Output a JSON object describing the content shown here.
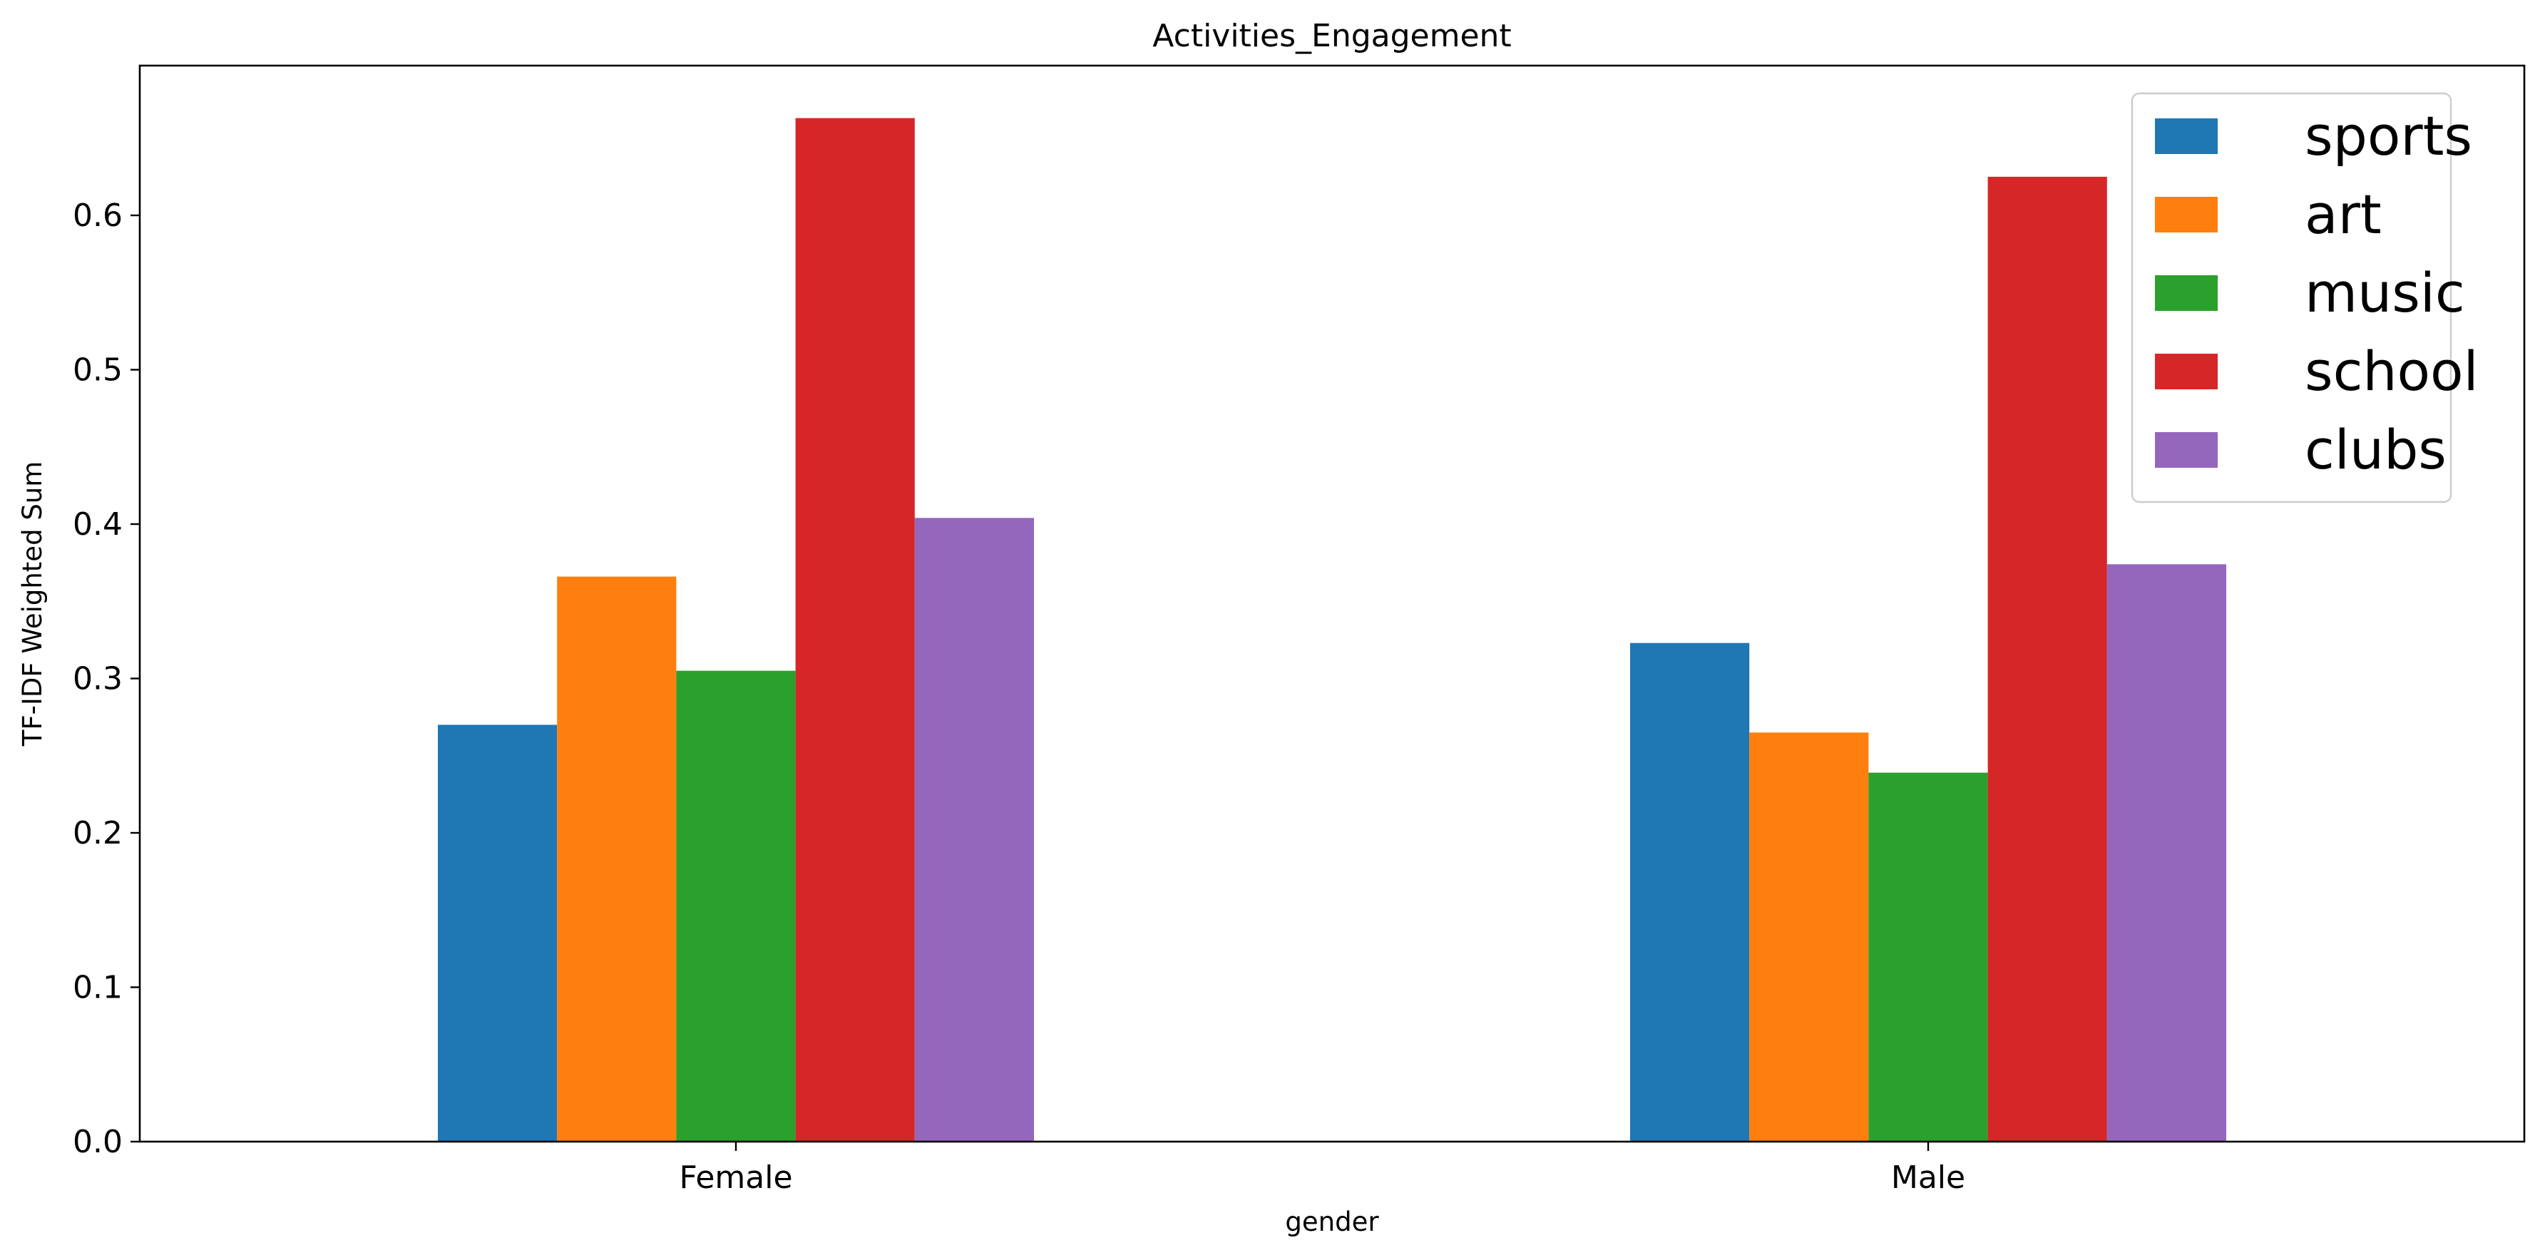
{
  "chart_data": {
    "type": "bar",
    "title": "Activities_Engagement",
    "xlabel": "gender",
    "ylabel": "TF-IDF Weighted Sum",
    "categories": [
      "Female",
      "Male"
    ],
    "series": [
      {
        "name": "sports",
        "color": "#1f77b4",
        "values": [
          0.27,
          0.323
        ]
      },
      {
        "name": "art",
        "color": "#ff7f0e",
        "values": [
          0.366,
          0.265
        ]
      },
      {
        "name": "music",
        "color": "#2ca02c",
        "values": [
          0.305,
          0.239
        ]
      },
      {
        "name": "school",
        "color": "#d62728",
        "values": [
          0.663,
          0.625
        ]
      },
      {
        "name": "clubs",
        "color": "#9467bd",
        "values": [
          0.404,
          0.374
        ]
      }
    ],
    "ylim": [
      0,
      0.697
    ],
    "yticks": [
      0.0,
      0.1,
      0.2,
      0.3,
      0.4,
      0.5,
      0.6
    ],
    "ytick_labels": [
      "0.0",
      "0.1",
      "0.2",
      "0.3",
      "0.4",
      "0.5",
      "0.6"
    ],
    "grid": false,
    "legend_position": "top-right"
  }
}
